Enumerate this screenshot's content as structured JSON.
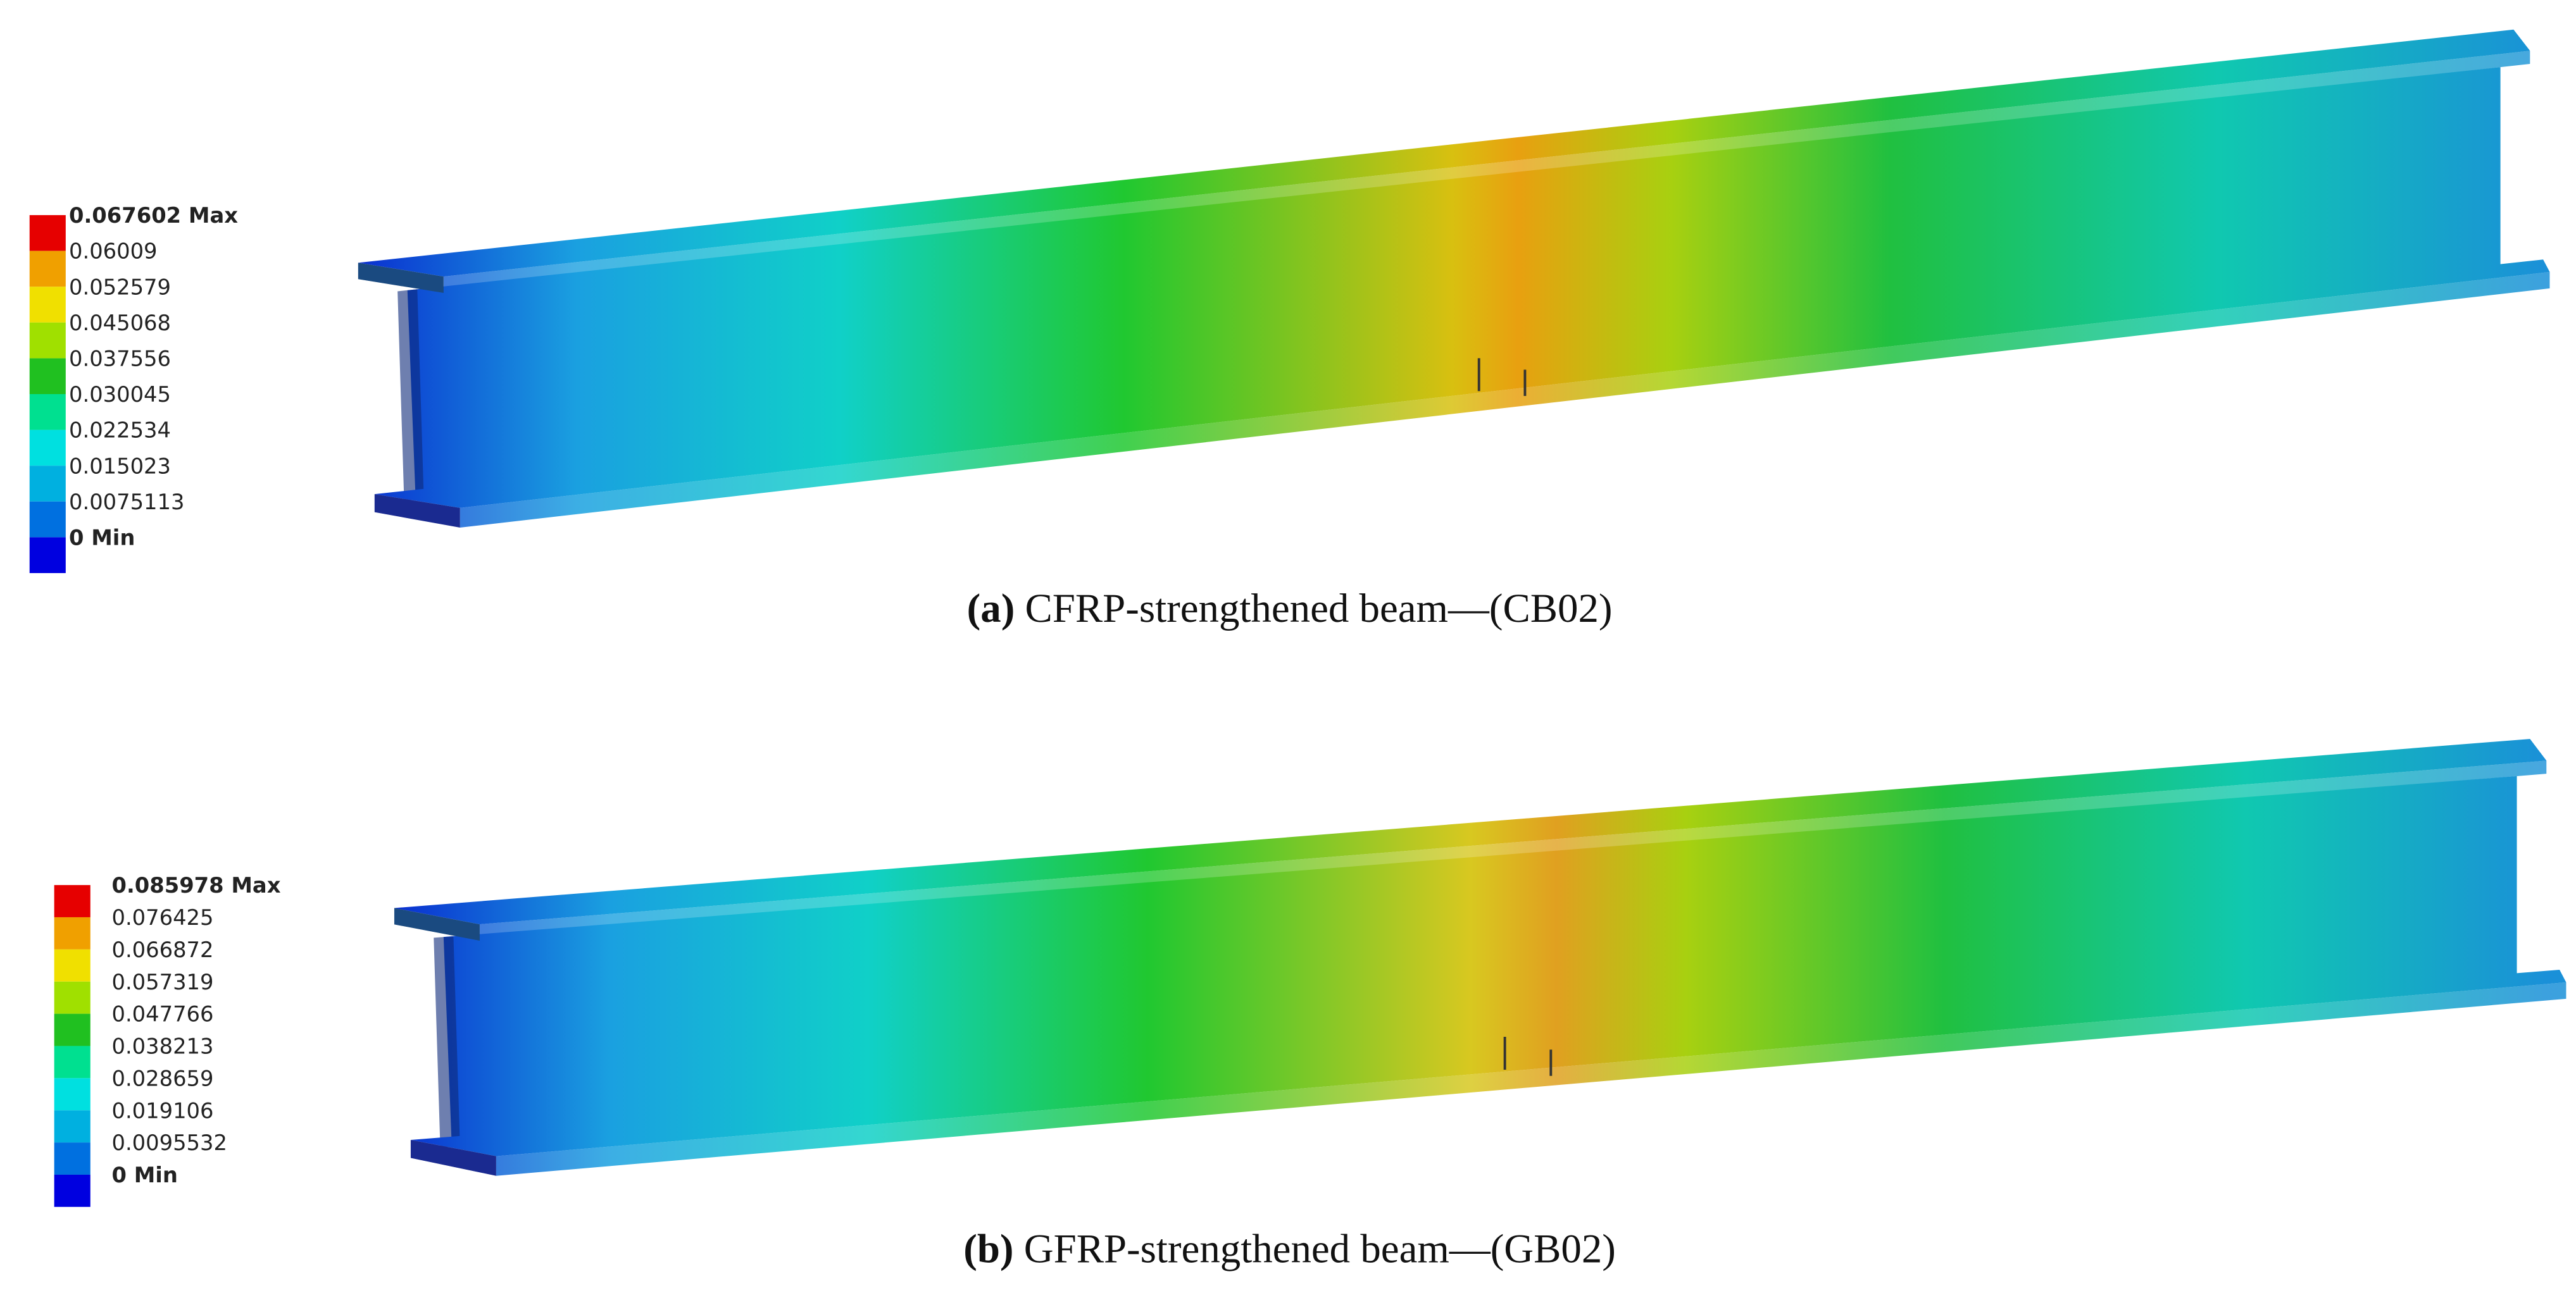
{
  "panels": [
    {
      "legend": [
        "0.067602 Max",
        "0.06009",
        "0.052579",
        "0.045068",
        "0.037556",
        "0.030045",
        "0.022534",
        "0.015023",
        "0.0075113",
        "0 Min"
      ],
      "caption": {
        "label": "(a)",
        "text": "CFRP-strengthened beam—(CB02)"
      }
    },
    {
      "legend": [
        "0.085978 Max",
        "0.076425",
        "0.066872",
        "0.057319",
        "0.047766",
        "0.038213",
        "0.028659",
        "0.019106",
        "0.0095532",
        "0 Min"
      ],
      "caption": {
        "label": "(b)",
        "text": "GFRP-strengthened beam—(GB02)"
      }
    }
  ]
}
